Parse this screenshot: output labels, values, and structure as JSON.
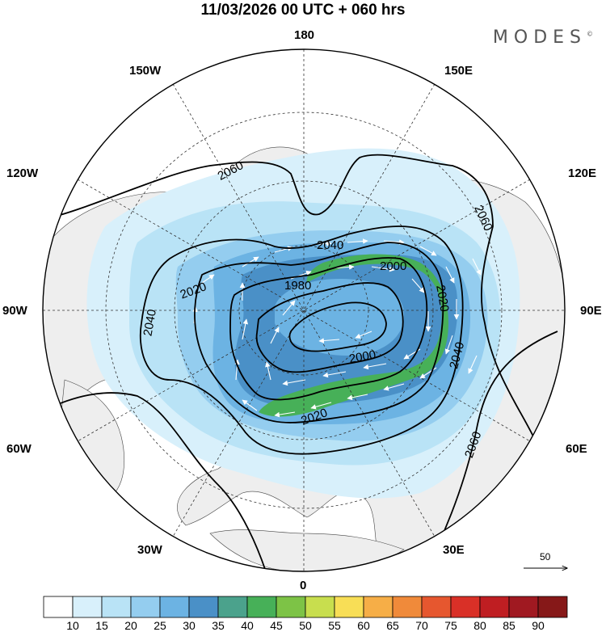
{
  "title": "11/03/2026  00 UTC  + 060 hrs",
  "brand": "MODES",
  "brand_mark": "©",
  "longitude_labels": {
    "n180": "180",
    "w150": "150W",
    "e150": "150E",
    "w120": "120W",
    "e120": "120E",
    "w90": "90W",
    "e90": "90E",
    "w60": "60W",
    "e60": "60E",
    "w30": "30W",
    "e30": "30E",
    "s0": "0"
  },
  "contours": {
    "c2060a": "2060",
    "c2060b": "2060",
    "c2060c": "2060",
    "c2040a": "2040",
    "c2040b": "2040",
    "c2040c": "2040",
    "c2020a": "2020",
    "c2020b": "2020",
    "c2020c": "2020",
    "c2000a": "2000",
    "c2000b": "2000",
    "c1980": "1980"
  },
  "wind_scale": {
    "value": "50"
  },
  "colorbar": {
    "labels": [
      "10",
      "15",
      "20",
      "25",
      "30",
      "35",
      "40",
      "45",
      "50",
      "55",
      "60",
      "65",
      "70",
      "75",
      "80",
      "85",
      "90"
    ],
    "colors": [
      "#ffffff",
      "#d8f0fb",
      "#b9e3f6",
      "#94cdef",
      "#6cb3e3",
      "#4a90c7",
      "#4ba28c",
      "#47b058",
      "#7dc346",
      "#c8de4e",
      "#f8de56",
      "#f6ae47",
      "#f08a3a",
      "#e6572f",
      "#d93027",
      "#bf1e22",
      "#a01921",
      "#861818"
    ]
  }
}
